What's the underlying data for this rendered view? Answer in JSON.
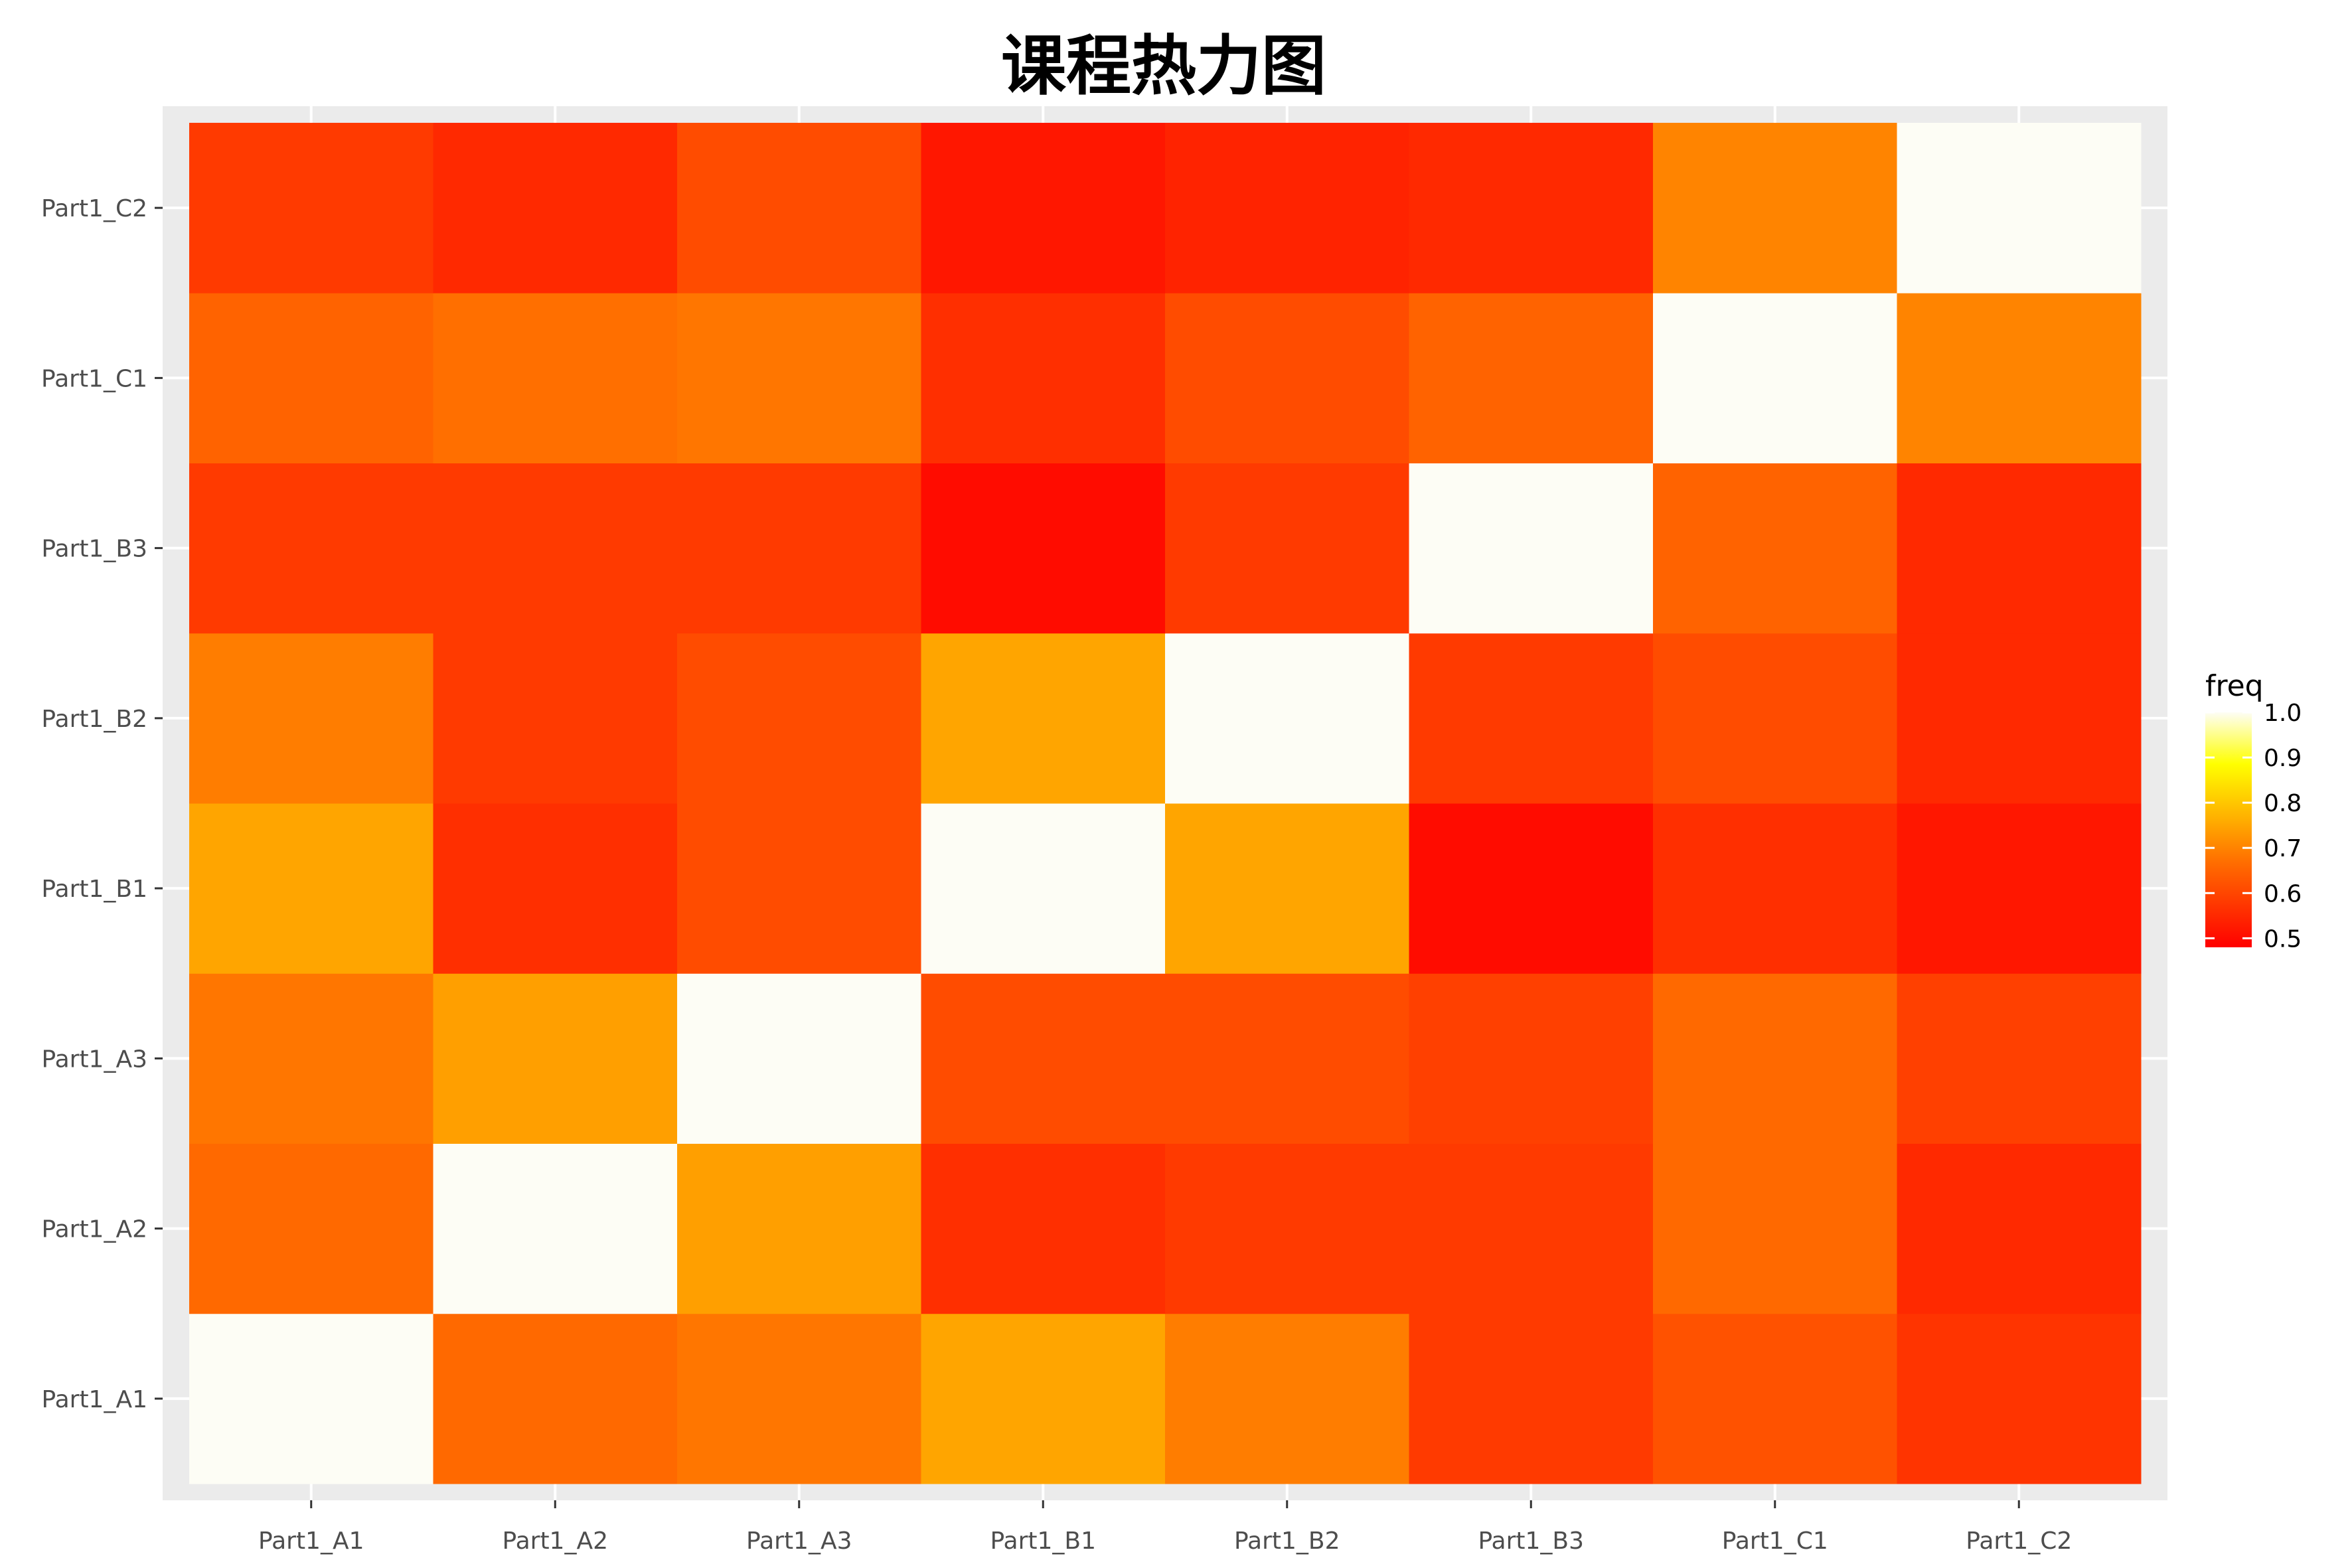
{
  "chart_data": {
    "type": "heatmap",
    "title": "课程热力图",
    "xlabel": "",
    "ylabel": "",
    "categories": [
      "Part1_A1",
      "Part1_A2",
      "Part1_A3",
      "Part1_B1",
      "Part1_B2",
      "Part1_B3",
      "Part1_C1",
      "Part1_C2"
    ],
    "y_categories": [
      "Part1_A1",
      "Part1_A2",
      "Part1_A3",
      "Part1_B1",
      "Part1_B2",
      "Part1_B3",
      "Part1_C1",
      "Part1_C2"
    ],
    "values": [
      [
        1.0,
        0.66,
        0.68,
        0.75,
        0.69,
        0.58,
        0.62,
        0.57
      ],
      [
        0.66,
        1.0,
        0.74,
        0.56,
        0.58,
        0.58,
        0.66,
        0.55
      ],
      [
        0.68,
        0.74,
        1.0,
        0.61,
        0.61,
        0.59,
        0.66,
        0.59
      ],
      [
        0.75,
        0.56,
        0.61,
        1.0,
        0.75,
        0.5,
        0.56,
        0.52
      ],
      [
        0.69,
        0.58,
        0.61,
        0.75,
        1.0,
        0.58,
        0.61,
        0.55
      ],
      [
        0.58,
        0.58,
        0.58,
        0.5,
        0.58,
        1.0,
        0.65,
        0.55
      ],
      [
        0.65,
        0.67,
        0.68,
        0.56,
        0.61,
        0.65,
        1.0,
        0.7
      ],
      [
        0.58,
        0.55,
        0.61,
        0.52,
        0.54,
        0.55,
        0.7,
        1.0
      ]
    ],
    "legend": {
      "title": "freq",
      "ticks": [
        "1.0",
        "0.9",
        "0.8",
        "0.7",
        "0.6",
        "0.5"
      ],
      "placement": "right"
    },
    "value_range": [
      0.48,
      1.0
    ],
    "grid": true,
    "colors": {
      "low": "#ff0000",
      "mid1": "#ff6a00",
      "mid2": "#ffb000",
      "mid3": "#ffff00",
      "high": "#fdfdf5",
      "panel_bg": "#ebebeb",
      "gridline": "#ffffff",
      "axis_text": "#4d4d4d",
      "title_color": "#000000"
    }
  }
}
